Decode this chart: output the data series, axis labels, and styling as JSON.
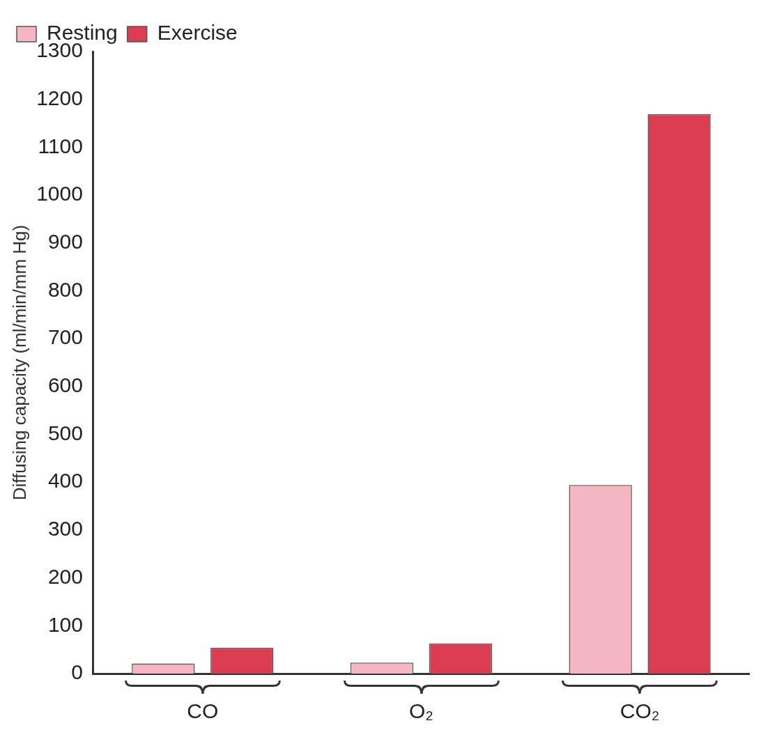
{
  "chart_data": {
    "type": "bar",
    "ylabel": "Diffusing capacity (ml/min/mm Hg)",
    "categories": [
      "CO",
      "O₂",
      "CO₂"
    ],
    "series": [
      {
        "name": "Resting",
        "color": "#f4b6c2",
        "values": [
          21,
          23,
          394
        ]
      },
      {
        "name": "Exercise",
        "color": "#dc3c50",
        "values": [
          54,
          63,
          1169
        ]
      }
    ],
    "ylim": [
      0,
      1300
    ],
    "yticks": [
      0,
      100,
      200,
      300,
      400,
      500,
      600,
      700,
      800,
      900,
      1000,
      1100,
      1200,
      1300
    ],
    "grid": false,
    "legend": "top left"
  }
}
